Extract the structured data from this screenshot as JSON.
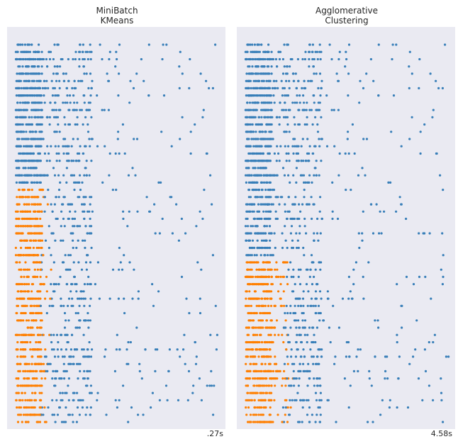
{
  "colors": {
    "cluster_0": "#377eb8",
    "cluster_1": "#ff7f00",
    "panel_background": "#eaeaf2",
    "text": "#262626"
  },
  "chart_data": [
    {
      "type": "scatter",
      "title_lines": [
        "MiniBatch",
        "KMeans"
      ],
      "time_label": ".27s",
      "grid": false,
      "axes_visible": false,
      "orange_from_row": 20,
      "orange_fraction": 0.15,
      "series": [
        {
          "name": "",
          "color": "#377eb8"
        },
        {
          "name": "",
          "color": "#ff7f00"
        }
      ]
    },
    {
      "type": "scatter",
      "title_lines": [
        "Agglomerative",
        "Clustering"
      ],
      "time_label": "4.58s",
      "grid": false,
      "axes_visible": false,
      "orange_from_row": 30,
      "orange_fraction": 0.2,
      "series": [
        {
          "name": "",
          "color": "#377eb8"
        },
        {
          "name": "",
          "color": "#ff7f00"
        }
      ]
    }
  ]
}
